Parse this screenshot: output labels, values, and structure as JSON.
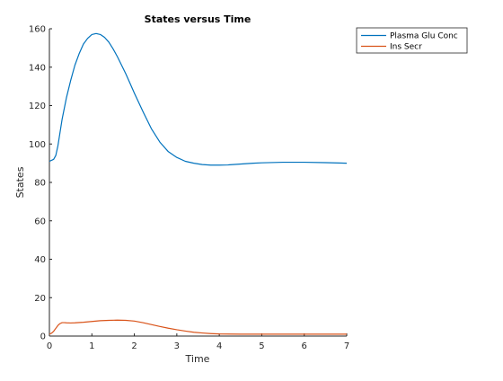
{
  "window": {
    "title": "States versus Time"
  },
  "colors": {
    "series_1": "#0072BD",
    "series_2": "#D95319",
    "axis": "#262626",
    "background": "#ffffff"
  },
  "chart_data": {
    "type": "line",
    "title": "States versus Time",
    "xlabel": "Time",
    "ylabel": "States",
    "xlim": [
      0,
      7
    ],
    "ylim": [
      0,
      160
    ],
    "xticks": [
      0,
      1,
      2,
      3,
      4,
      5,
      6,
      7
    ],
    "yticks": [
      0,
      20,
      40,
      60,
      80,
      100,
      120,
      140,
      160
    ],
    "grid": false,
    "legend_location": "top-right",
    "series": [
      {
        "name": "Plasma Glu Conc",
        "color": "#0072BD",
        "x": [
          0,
          0.05,
          0.1,
          0.15,
          0.2,
          0.25,
          0.3,
          0.4,
          0.5,
          0.6,
          0.7,
          0.8,
          0.9,
          1.0,
          1.1,
          1.2,
          1.3,
          1.4,
          1.5,
          1.6,
          1.7,
          1.8,
          1.9,
          2.0,
          2.2,
          2.4,
          2.6,
          2.8,
          3.0,
          3.2,
          3.4,
          3.6,
          3.8,
          4.0,
          4.2,
          4.4,
          4.6,
          4.8,
          5.0,
          5.5,
          6.0,
          6.5,
          7.0
        ],
        "y": [
          91,
          91.5,
          92,
          94,
          99,
          106,
          113,
          124,
          133,
          141,
          147,
          152,
          155,
          157,
          157.5,
          157,
          155.5,
          153,
          149.5,
          145.5,
          141,
          136.5,
          131.5,
          126.5,
          117,
          108,
          101,
          96,
          93,
          91,
          90,
          89.3,
          89,
          89,
          89.1,
          89.4,
          89.7,
          90,
          90.2,
          90.5,
          90.5,
          90.3,
          90
        ]
      },
      {
        "name": "Ins Secr",
        "color": "#D95319",
        "x": [
          0,
          0.05,
          0.1,
          0.15,
          0.2,
          0.25,
          0.3,
          0.35,
          0.4,
          0.5,
          0.6,
          0.8,
          1.0,
          1.2,
          1.4,
          1.6,
          1.8,
          2.0,
          2.2,
          2.4,
          2.6,
          2.8,
          3.0,
          3.2,
          3.4,
          3.6,
          3.8,
          4.0,
          4.5,
          5.0,
          5.5,
          6.0,
          6.5,
          7.0
        ],
        "y": [
          1,
          1.5,
          2.5,
          4,
          5.5,
          6.5,
          7,
          7,
          6.9,
          6.8,
          6.9,
          7.2,
          7.6,
          8,
          8.2,
          8.3,
          8.2,
          7.8,
          7,
          6,
          5,
          4.1,
          3.3,
          2.6,
          2,
          1.6,
          1.3,
          1.1,
          1,
          1,
          1,
          1,
          1,
          1
        ]
      }
    ]
  }
}
